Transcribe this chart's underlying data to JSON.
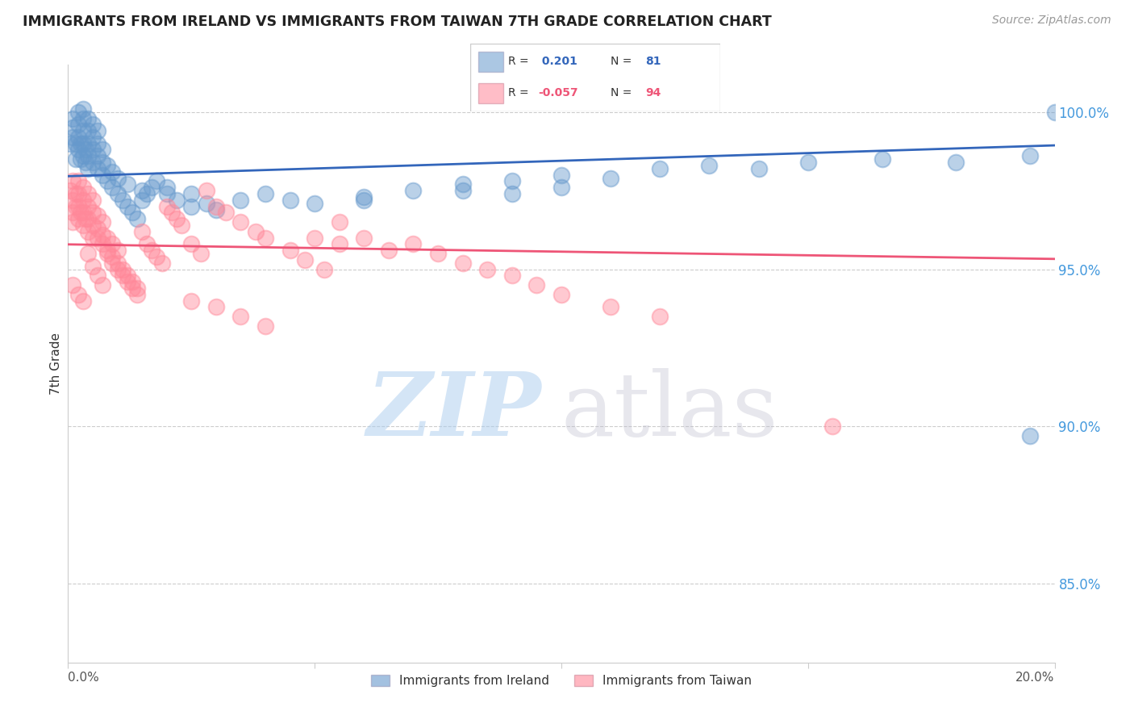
{
  "title": "IMMIGRANTS FROM IRELAND VS IMMIGRANTS FROM TAIWAN 7TH GRADE CORRELATION CHART",
  "source": "Source: ZipAtlas.com",
  "ylabel": "7th Grade",
  "r_ireland": 0.201,
  "n_ireland": 81,
  "r_taiwan": -0.057,
  "n_taiwan": 94,
  "color_ireland": "#6699CC",
  "color_taiwan": "#FF8899",
  "trendline_ireland": "#3366BB",
  "trendline_taiwan": "#EE5577",
  "right_ytick_values": [
    0.85,
    0.9,
    0.95,
    1.0
  ],
  "right_ytick_labels": [
    "85.0%",
    "90.0%",
    "95.0%",
    "100.0%"
  ],
  "watermark_zip_color": "#AACCEE",
  "watermark_atlas_color": "#BBBBCC",
  "legend_label_ireland": "Immigrants from Ireland",
  "legend_label_taiwan": "Immigrants from Taiwan",
  "ylim_low": 0.825,
  "ylim_high": 1.015,
  "xlim_low": 0.0,
  "xlim_high": 0.2,
  "ireland_x": [
    0.0005,
    0.001,
    0.001,
    0.001,
    0.0015,
    0.0015,
    0.002,
    0.002,
    0.002,
    0.002,
    0.0025,
    0.0025,
    0.003,
    0.003,
    0.003,
    0.003,
    0.003,
    0.0035,
    0.0035,
    0.004,
    0.004,
    0.004,
    0.004,
    0.004,
    0.005,
    0.005,
    0.005,
    0.005,
    0.006,
    0.006,
    0.006,
    0.006,
    0.007,
    0.007,
    0.007,
    0.008,
    0.008,
    0.009,
    0.009,
    0.01,
    0.01,
    0.011,
    0.012,
    0.013,
    0.014,
    0.015,
    0.016,
    0.017,
    0.018,
    0.02,
    0.022,
    0.025,
    0.028,
    0.03,
    0.035,
    0.04,
    0.045,
    0.05,
    0.06,
    0.07,
    0.08,
    0.09,
    0.1,
    0.11,
    0.12,
    0.13,
    0.14,
    0.15,
    0.165,
    0.18,
    0.195,
    0.2,
    0.012,
    0.015,
    0.02,
    0.025,
    0.06,
    0.08,
    0.09,
    0.1,
    0.195
  ],
  "ireland_y": [
    0.99,
    0.992,
    0.995,
    0.998,
    0.985,
    0.99,
    0.988,
    0.992,
    0.996,
    1.0,
    0.985,
    0.99,
    0.986,
    0.99,
    0.994,
    0.998,
    1.001,
    0.984,
    0.988,
    0.982,
    0.986,
    0.99,
    0.994,
    0.998,
    0.984,
    0.988,
    0.992,
    0.996,
    0.982,
    0.986,
    0.99,
    0.994,
    0.98,
    0.984,
    0.988,
    0.978,
    0.983,
    0.976,
    0.981,
    0.974,
    0.979,
    0.972,
    0.97,
    0.968,
    0.966,
    0.972,
    0.974,
    0.976,
    0.978,
    0.974,
    0.972,
    0.97,
    0.971,
    0.969,
    0.972,
    0.974,
    0.972,
    0.971,
    0.973,
    0.975,
    0.977,
    0.978,
    0.98,
    0.979,
    0.982,
    0.983,
    0.982,
    0.984,
    0.985,
    0.984,
    0.986,
    1.0,
    0.977,
    0.975,
    0.976,
    0.974,
    0.972,
    0.975,
    0.974,
    0.976,
    0.897
  ],
  "taiwan_x": [
    0.0005,
    0.001,
    0.001,
    0.001,
    0.001,
    0.0015,
    0.0015,
    0.002,
    0.002,
    0.002,
    0.002,
    0.0025,
    0.003,
    0.003,
    0.003,
    0.003,
    0.0035,
    0.004,
    0.004,
    0.004,
    0.004,
    0.005,
    0.005,
    0.005,
    0.005,
    0.006,
    0.006,
    0.006,
    0.007,
    0.007,
    0.007,
    0.008,
    0.008,
    0.009,
    0.009,
    0.01,
    0.01,
    0.011,
    0.012,
    0.013,
    0.014,
    0.015,
    0.016,
    0.017,
    0.018,
    0.019,
    0.02,
    0.021,
    0.022,
    0.023,
    0.025,
    0.027,
    0.028,
    0.03,
    0.032,
    0.035,
    0.038,
    0.04,
    0.045,
    0.048,
    0.052,
    0.055,
    0.06,
    0.065,
    0.07,
    0.075,
    0.08,
    0.085,
    0.09,
    0.095,
    0.1,
    0.11,
    0.12,
    0.025,
    0.03,
    0.035,
    0.04,
    0.05,
    0.055,
    0.008,
    0.009,
    0.01,
    0.011,
    0.012,
    0.013,
    0.014,
    0.004,
    0.005,
    0.006,
    0.007,
    0.155,
    0.003,
    0.002,
    0.001
  ],
  "taiwan_y": [
    0.975,
    0.972,
    0.968,
    0.965,
    0.978,
    0.97,
    0.974,
    0.966,
    0.97,
    0.974,
    0.978,
    0.968,
    0.964,
    0.968,
    0.972,
    0.976,
    0.966,
    0.962,
    0.966,
    0.97,
    0.974,
    0.96,
    0.964,
    0.968,
    0.972,
    0.96,
    0.963,
    0.967,
    0.958,
    0.961,
    0.965,
    0.956,
    0.96,
    0.954,
    0.958,
    0.952,
    0.956,
    0.95,
    0.948,
    0.946,
    0.944,
    0.962,
    0.958,
    0.956,
    0.954,
    0.952,
    0.97,
    0.968,
    0.966,
    0.964,
    0.958,
    0.955,
    0.975,
    0.97,
    0.968,
    0.965,
    0.962,
    0.96,
    0.956,
    0.953,
    0.95,
    0.965,
    0.96,
    0.956,
    0.958,
    0.955,
    0.952,
    0.95,
    0.948,
    0.945,
    0.942,
    0.938,
    0.935,
    0.94,
    0.938,
    0.935,
    0.932,
    0.96,
    0.958,
    0.955,
    0.952,
    0.95,
    0.948,
    0.946,
    0.944,
    0.942,
    0.955,
    0.951,
    0.948,
    0.945,
    0.9,
    0.94,
    0.942,
    0.945
  ]
}
